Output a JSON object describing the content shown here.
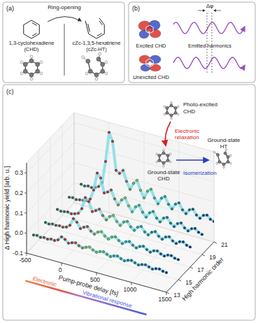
{
  "panel_a": {
    "label": "(a)",
    "arrow_label": "Ring-opening",
    "left_name": [
      "1,3-cyclohexadiene",
      "(CHD)"
    ],
    "right_name": [
      "cZc-1,3,5-hexatriene",
      "(cZc-HT)"
    ]
  },
  "panel_b": {
    "label": "(b)",
    "excited_label": "Excited CHD",
    "unexcited_label": "Unexcited CHD",
    "waves_label": "Emitted harmonics",
    "phase_label": "Δφ"
  },
  "chart_data": {
    "type": "line",
    "panel_label": "(c)",
    "x_label": "Pump-probe delay [fs]",
    "y_label": "Δ High harmonic yield [arb. u.]",
    "z_label": "High harmonic order",
    "x": [
      -400,
      -350,
      -300,
      -250,
      -200,
      -150,
      -100,
      -50,
      0,
      50,
      100,
      150,
      200,
      250,
      300,
      350,
      400,
      450,
      500,
      550,
      600,
      650,
      700,
      750,
      800,
      850,
      900,
      950,
      1000,
      1050,
      1100,
      1150,
      1200,
      1250,
      1300,
      1350,
      1400,
      1450,
      1500
    ],
    "xlim": [
      -500,
      1500
    ],
    "xticks": [
      -500,
      0,
      500,
      1000,
      1500
    ],
    "ylim": [
      -0.1,
      0.35
    ],
    "yticks": [
      -0.1,
      {
        "value": 0,
        "label": "0.0"
      },
      0.1,
      0.2,
      0.3
    ],
    "grid": true,
    "marker": "circle",
    "series": [
      {
        "name": "13",
        "color": "#7fdbe6",
        "values": [
          0.0,
          0.003,
          -0.002,
          0.002,
          -0.001,
          0.004,
          0.002,
          0.01,
          0.03,
          0.022,
          0.008,
          0.015,
          0.02,
          0.01,
          0.004,
          0.012,
          0.018,
          0.008,
          0.002,
          0.01,
          0.014,
          0.006,
          0.0,
          0.008,
          0.012,
          0.004,
          -0.002,
          0.006,
          0.01,
          0.003,
          -0.003,
          0.004,
          0.008,
          0.002,
          -0.004,
          0.003,
          0.006,
          0.0,
          -0.002
        ]
      },
      {
        "name": "15",
        "color": "#7fdbe6",
        "values": [
          0.0,
          -0.003,
          0.002,
          0.0,
          0.003,
          0.001,
          0.006,
          0.02,
          0.058,
          0.045,
          0.018,
          0.03,
          0.038,
          0.02,
          0.01,
          0.025,
          0.032,
          0.015,
          0.005,
          0.02,
          0.026,
          0.012,
          0.002,
          0.016,
          0.022,
          0.008,
          0.0,
          0.012,
          0.018,
          0.006,
          -0.002,
          0.01,
          0.014,
          0.004,
          -0.002,
          0.008,
          0.01,
          0.002,
          0.0
        ]
      },
      {
        "name": "17",
        "color": "#7fdbe6",
        "values": [
          0.002,
          -0.002,
          0.001,
          0.004,
          0.0,
          0.005,
          0.012,
          0.04,
          0.1,
          0.085,
          0.04,
          0.05,
          0.062,
          0.035,
          0.018,
          0.04,
          0.05,
          0.025,
          0.01,
          0.032,
          0.04,
          0.018,
          0.005,
          0.026,
          0.034,
          0.012,
          0.002,
          0.02,
          0.028,
          0.01,
          0.0,
          0.016,
          0.022,
          0.006,
          -0.002,
          0.012,
          0.016,
          0.004,
          0.0
        ]
      },
      {
        "name": "19",
        "color": "#7fdbe6",
        "values": [
          0.0,
          0.003,
          -0.002,
          0.002,
          0.004,
          0.008,
          0.02,
          0.07,
          0.16,
          0.14,
          0.07,
          0.08,
          0.095,
          0.055,
          0.03,
          0.06,
          0.075,
          0.04,
          0.015,
          0.045,
          0.058,
          0.028,
          0.008,
          0.035,
          0.046,
          0.018,
          0.004,
          0.028,
          0.036,
          0.012,
          0.0,
          0.02,
          0.028,
          0.008,
          -0.002,
          0.014,
          0.02,
          0.006,
          0.0
        ]
      },
      {
        "name": "21",
        "color": "#7fdbe6",
        "values": [
          0.002,
          -0.002,
          0.003,
          0.0,
          0.006,
          0.015,
          0.04,
          0.15,
          0.3,
          0.26,
          0.12,
          0.11,
          0.13,
          0.08,
          0.045,
          0.08,
          0.1,
          0.055,
          0.022,
          0.06,
          0.075,
          0.036,
          0.012,
          0.045,
          0.058,
          0.024,
          0.006,
          0.035,
          0.046,
          0.016,
          0.002,
          0.026,
          0.034,
          0.01,
          -0.002,
          0.018,
          0.024,
          0.008,
          0.002
        ]
      }
    ],
    "annotations": {
      "band": [
        "Electronic",
        "Vibrational response"
      ],
      "photo_excited": [
        "Photo-excited",
        "CHD"
      ],
      "relaxation": [
        "Electronic",
        "relaxation"
      ],
      "ground_chd": [
        "Ground-state",
        "CHD"
      ],
      "ground_ht": [
        "Ground-state",
        "HT"
      ],
      "isomerization": "Isomerization"
    }
  }
}
